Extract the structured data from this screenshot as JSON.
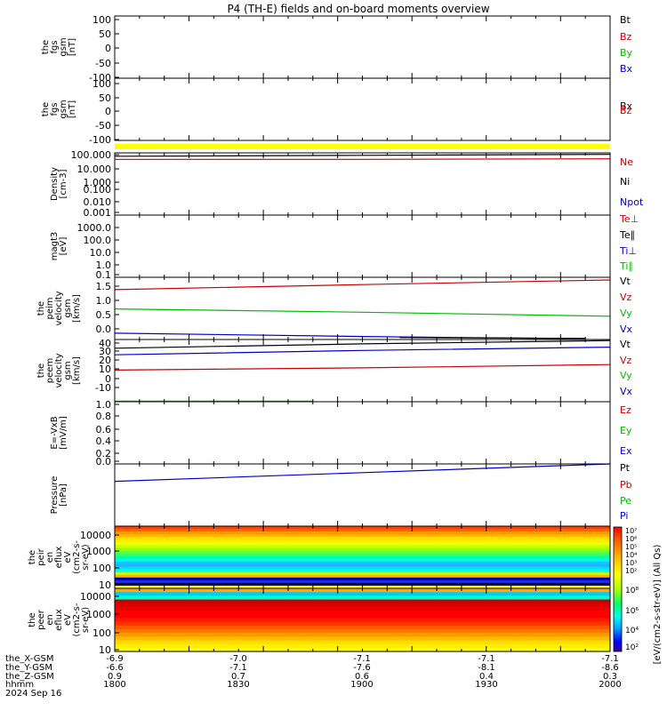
{
  "title": "P4 (TH-E) fields and on-board moments overview",
  "footer": {
    "rows": [
      {
        "label": "the_X-GSM",
        "values": [
          "-6.9",
          "-7.0",
          "-7.1",
          "-7.1",
          "-7.1"
        ]
      },
      {
        "label": "the_Y-GSM",
        "values": [
          "-6.6",
          "-7.1",
          "-7.6",
          "-8.1",
          "-8.6"
        ]
      },
      {
        "label": "the_Z-GSM",
        "values": [
          "0.9",
          "0.7",
          "0.6",
          "0.4",
          "0.3"
        ]
      },
      {
        "label": "hhmm",
        "values": [
          "1800",
          "1830",
          "1900",
          "1930",
          "2000"
        ]
      }
    ],
    "date": "2024 Sep 16"
  },
  "colorbar": {
    "label": "[eV/(cm2-s-str-eV)] (All Qs)",
    "ticks_top": [
      "10⁷",
      "10⁶",
      "10⁵",
      "10⁴",
      "10³",
      "10²"
    ],
    "ticks_bottom": [
      "10⁸",
      "10⁶",
      "10⁴",
      "10²"
    ]
  },
  "chart_data": [
    {
      "type": "line",
      "ylabel": [
        "the",
        "fgs",
        "gsm",
        "[nT]"
      ],
      "ticks": [
        "100",
        "50",
        "0",
        "-50",
        "-100"
      ],
      "ylim": [
        -100,
        100
      ],
      "legend": [
        {
          "name": "Bt",
          "color": "#000000"
        },
        {
          "name": "Bz",
          "color": "#cc0000"
        },
        {
          "name": "By",
          "color": "#00bb00"
        },
        {
          "name": "Bx",
          "color": "#0000cc"
        }
      ],
      "series": []
    },
    {
      "type": "line",
      "ylabel": [
        "the",
        "fgs",
        "gsm",
        "[nT]"
      ],
      "ticks": [
        "100",
        "50",
        "0",
        "-50",
        "-100"
      ],
      "ylim": [
        -120,
        120
      ],
      "legend": [
        {
          "name": "Bx",
          "color": "#000000"
        },
        {
          "name": "Bz",
          "color": "#cc0000"
        }
      ],
      "bar_color": "#ffff00",
      "series": []
    },
    {
      "type": "line",
      "ylabel": [
        "Density",
        "[cm-3]"
      ],
      "ticks": [
        "100.000",
        "10.000",
        "1.000",
        "0.100",
        "0.010",
        "0.001"
      ],
      "scale": "log",
      "ylim": [
        0.001,
        300
      ],
      "legend": [
        {
          "name": "Ne",
          "color": "#cc0000"
        },
        {
          "name": "Ni",
          "color": "#000000"
        },
        {
          "name": "Npot",
          "color": "#0000cc"
        }
      ],
      "series": [
        {
          "name": "Ne",
          "color": "#cc0000",
          "x": [
            1800,
            1900,
            2000
          ],
          "y": [
            80,
            80,
            90
          ]
        },
        {
          "name": "Ni",
          "color": "#000000",
          "x": [
            1800,
            1900,
            2000
          ],
          "y": [
            150,
            180,
            220
          ]
        }
      ]
    },
    {
      "type": "line",
      "ylabel": [
        "magt3",
        "[eV]"
      ],
      "ticks": [
        "1000.0",
        "100.0",
        "10.0",
        "1.0",
        "0.1"
      ],
      "scale": "log",
      "ylim": [
        0.1,
        10000
      ],
      "legend": [
        {
          "name": "Te⊥",
          "color": "#cc0000"
        },
        {
          "name": "Te∥",
          "color": "#000000"
        },
        {
          "name": "Ti⊥",
          "color": "#0000cc"
        },
        {
          "name": "Ti∥",
          "color": "#00bb00"
        }
      ],
      "series": []
    },
    {
      "type": "line",
      "ylabel": [
        "the",
        "peim",
        "velocity",
        "gsm",
        "[km/s]"
      ],
      "ticks": [
        "1.5",
        "1.0",
        "0.5",
        "0.0"
      ],
      "ylim": [
        -0.12,
        1.75
      ],
      "legend": [
        {
          "name": "Vt",
          "color": "#000000"
        },
        {
          "name": "Vz",
          "color": "#cc0000"
        },
        {
          "name": "Vy",
          "color": "#00bb00"
        },
        {
          "name": "Vx",
          "color": "#0000cc"
        }
      ],
      "series": [
        {
          "name": "Vz",
          "color": "#cc0000",
          "x": [
            1800,
            1900,
            2000
          ],
          "y": [
            1.38,
            1.53,
            1.67
          ]
        },
        {
          "name": "Vy",
          "color": "#00bb00",
          "x": [
            1800,
            1900,
            2000
          ],
          "y": [
            0.8,
            0.7,
            0.58
          ]
        },
        {
          "name": "Vx",
          "color": "#0000cc",
          "x": [
            1800,
            1900,
            1950,
            1990
          ],
          "y": [
            0.07,
            -0.03,
            -0.07,
            -0.09
          ]
        },
        {
          "name": "Vt",
          "color": "#000000",
          "x": [
            1915,
            1990
          ],
          "y": [
            -0.06,
            -0.09
          ]
        }
      ]
    },
    {
      "type": "line",
      "ylabel": [
        "the",
        "peem",
        "velocity",
        "gsm",
        "[km/s]"
      ],
      "ticks": [
        "40",
        "30",
        "20",
        "10",
        "0",
        "-10"
      ],
      "ylim": [
        -15,
        42
      ],
      "legend": [
        {
          "name": "Vt",
          "color": "#000000"
        },
        {
          "name": "Vz",
          "color": "#cc0000"
        },
        {
          "name": "Vy",
          "color": "#00bb00"
        },
        {
          "name": "Vx",
          "color": "#0000cc"
        }
      ],
      "series": [
        {
          "name": "Vt",
          "color": "#000000",
          "x": [
            1800,
            1900,
            2000
          ],
          "y": [
            34,
            38,
            41
          ]
        },
        {
          "name": "Vx",
          "color": "#0000cc",
          "x": [
            1800,
            1900,
            2000
          ],
          "y": [
            28,
            32,
            35
          ]
        },
        {
          "name": "Vz",
          "color": "#cc0000",
          "x": [
            1800,
            1900,
            2000
          ],
          "y": [
            14,
            16,
            19
          ]
        },
        {
          "name": "Vy",
          "color": "#00bb00",
          "x": [
            1800,
            1880
          ],
          "y": [
            -14.5,
            -14.5
          ]
        }
      ]
    },
    {
      "type": "line",
      "ylabel": [
        "E=-VxB",
        "[mV/m]"
      ],
      "ticks": [
        "1.0",
        "0.8",
        "0.6",
        "0.4",
        "0.2",
        "0.0"
      ],
      "ylim": [
        -0.03,
        1.02
      ],
      "legend": [
        {
          "name": "Ez",
          "color": "#cc0000"
        },
        {
          "name": "Ey",
          "color": "#00bb00"
        },
        {
          "name": "Ex",
          "color": "#0000cc"
        }
      ],
      "series": []
    },
    {
      "type": "line",
      "ylabel": [
        "Pressure",
        "[nPa]"
      ],
      "ticks": [],
      "ylim": [
        0,
        1
      ],
      "legend": [
        {
          "name": "Pt",
          "color": "#000000"
        },
        {
          "name": "Pb",
          "color": "#cc0000"
        },
        {
          "name": "Pe",
          "color": "#00bb00"
        },
        {
          "name": "Pi",
          "color": "#0000cc"
        }
      ],
      "series": [
        {
          "name": "Pi",
          "color": "#0000cc",
          "x": [
            1800,
            1900,
            2000
          ],
          "y": [
            0.72,
            0.86,
            1.0
          ]
        }
      ]
    },
    {
      "type": "heatmap",
      "ylabel": [
        "the",
        "peir",
        "en",
        "eflux",
        "eV",
        "(cm2-s-",
        "sr-eV)"
      ],
      "ticks": [
        "10000",
        "1000",
        "100",
        "10"
      ],
      "scale": "log",
      "ylim": [
        5,
        25000
      ],
      "colors": [
        "#ff4000",
        "#ff6600",
        "#ff9900",
        "#ffbb00",
        "#ffdd00",
        "#ffee00",
        "#eeff00",
        "#ccff00",
        "#99ff00",
        "#66ff33",
        "#33ff66",
        "#00ffaa",
        "#00ffdd",
        "#00ccff",
        "#33aaff",
        "#00ddff",
        "#00ffdd",
        "#ccff00",
        "#ffaa00",
        "#0000aa",
        "#1a2aff",
        "#000044",
        "#ffff00"
      ]
    },
    {
      "type": "heatmap",
      "ylabel": [
        "the",
        "peer",
        "en",
        "eflux",
        "eV",
        "(cm2-s-",
        "sr-eV)"
      ],
      "ticks": [
        "10000",
        "1000",
        "100",
        "10"
      ],
      "scale": "log",
      "ylim": [
        5,
        25000
      ],
      "colors": [
        "#ffaa00",
        "#00ccff",
        "#00ffcc",
        "#cc0000",
        "#dd0000",
        "#ee0000",
        "#ff0000",
        "#ff0000",
        "#ff1a00",
        "#ff3300",
        "#ff5500",
        "#ff7700",
        "#ff9900",
        "#ffbb00",
        "#ffdd00",
        "#ffee00",
        "#ffff00"
      ]
    }
  ]
}
